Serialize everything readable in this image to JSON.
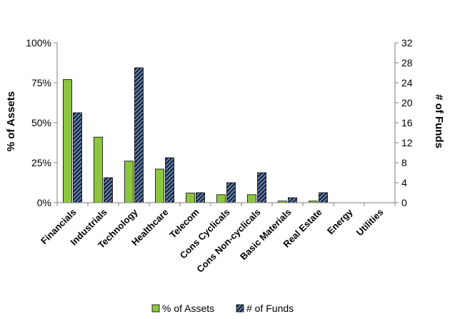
{
  "chart_data": {
    "type": "bar",
    "categories": [
      "Financials",
      "Industrials",
      "Technology",
      "Healthcare",
      "Telecom",
      "Cons Cyclicals",
      "Cons Non-cyclicals",
      "Basic Materials",
      "Real Estate",
      "Energy",
      "Utilities"
    ],
    "series": [
      {
        "name": "% of Assets",
        "axis": "left",
        "color": "#8cc63f",
        "values": [
          77,
          41,
          26,
          21,
          6,
          5,
          5,
          1,
          1,
          0,
          0
        ]
      },
      {
        "name": "# of Funds",
        "axis": "right",
        "color": "#1f2d4a",
        "pattern": "diagonal-light-blue",
        "values": [
          18,
          5,
          27,
          9,
          2,
          4,
          6,
          1,
          2,
          0,
          0
        ]
      }
    ],
    "left_axis": {
      "label": "% of Assets",
      "range": [
        0,
        100
      ],
      "ticks": [
        "0%",
        "25%",
        "50%",
        "75%",
        "100%"
      ]
    },
    "right_axis": {
      "label": "# of Funds",
      "range": [
        0,
        32
      ],
      "ticks": [
        "0",
        "4",
        "8",
        "12",
        "16",
        "20",
        "24",
        "28",
        "32"
      ]
    },
    "grid": false,
    "legend_position": "bottom"
  }
}
